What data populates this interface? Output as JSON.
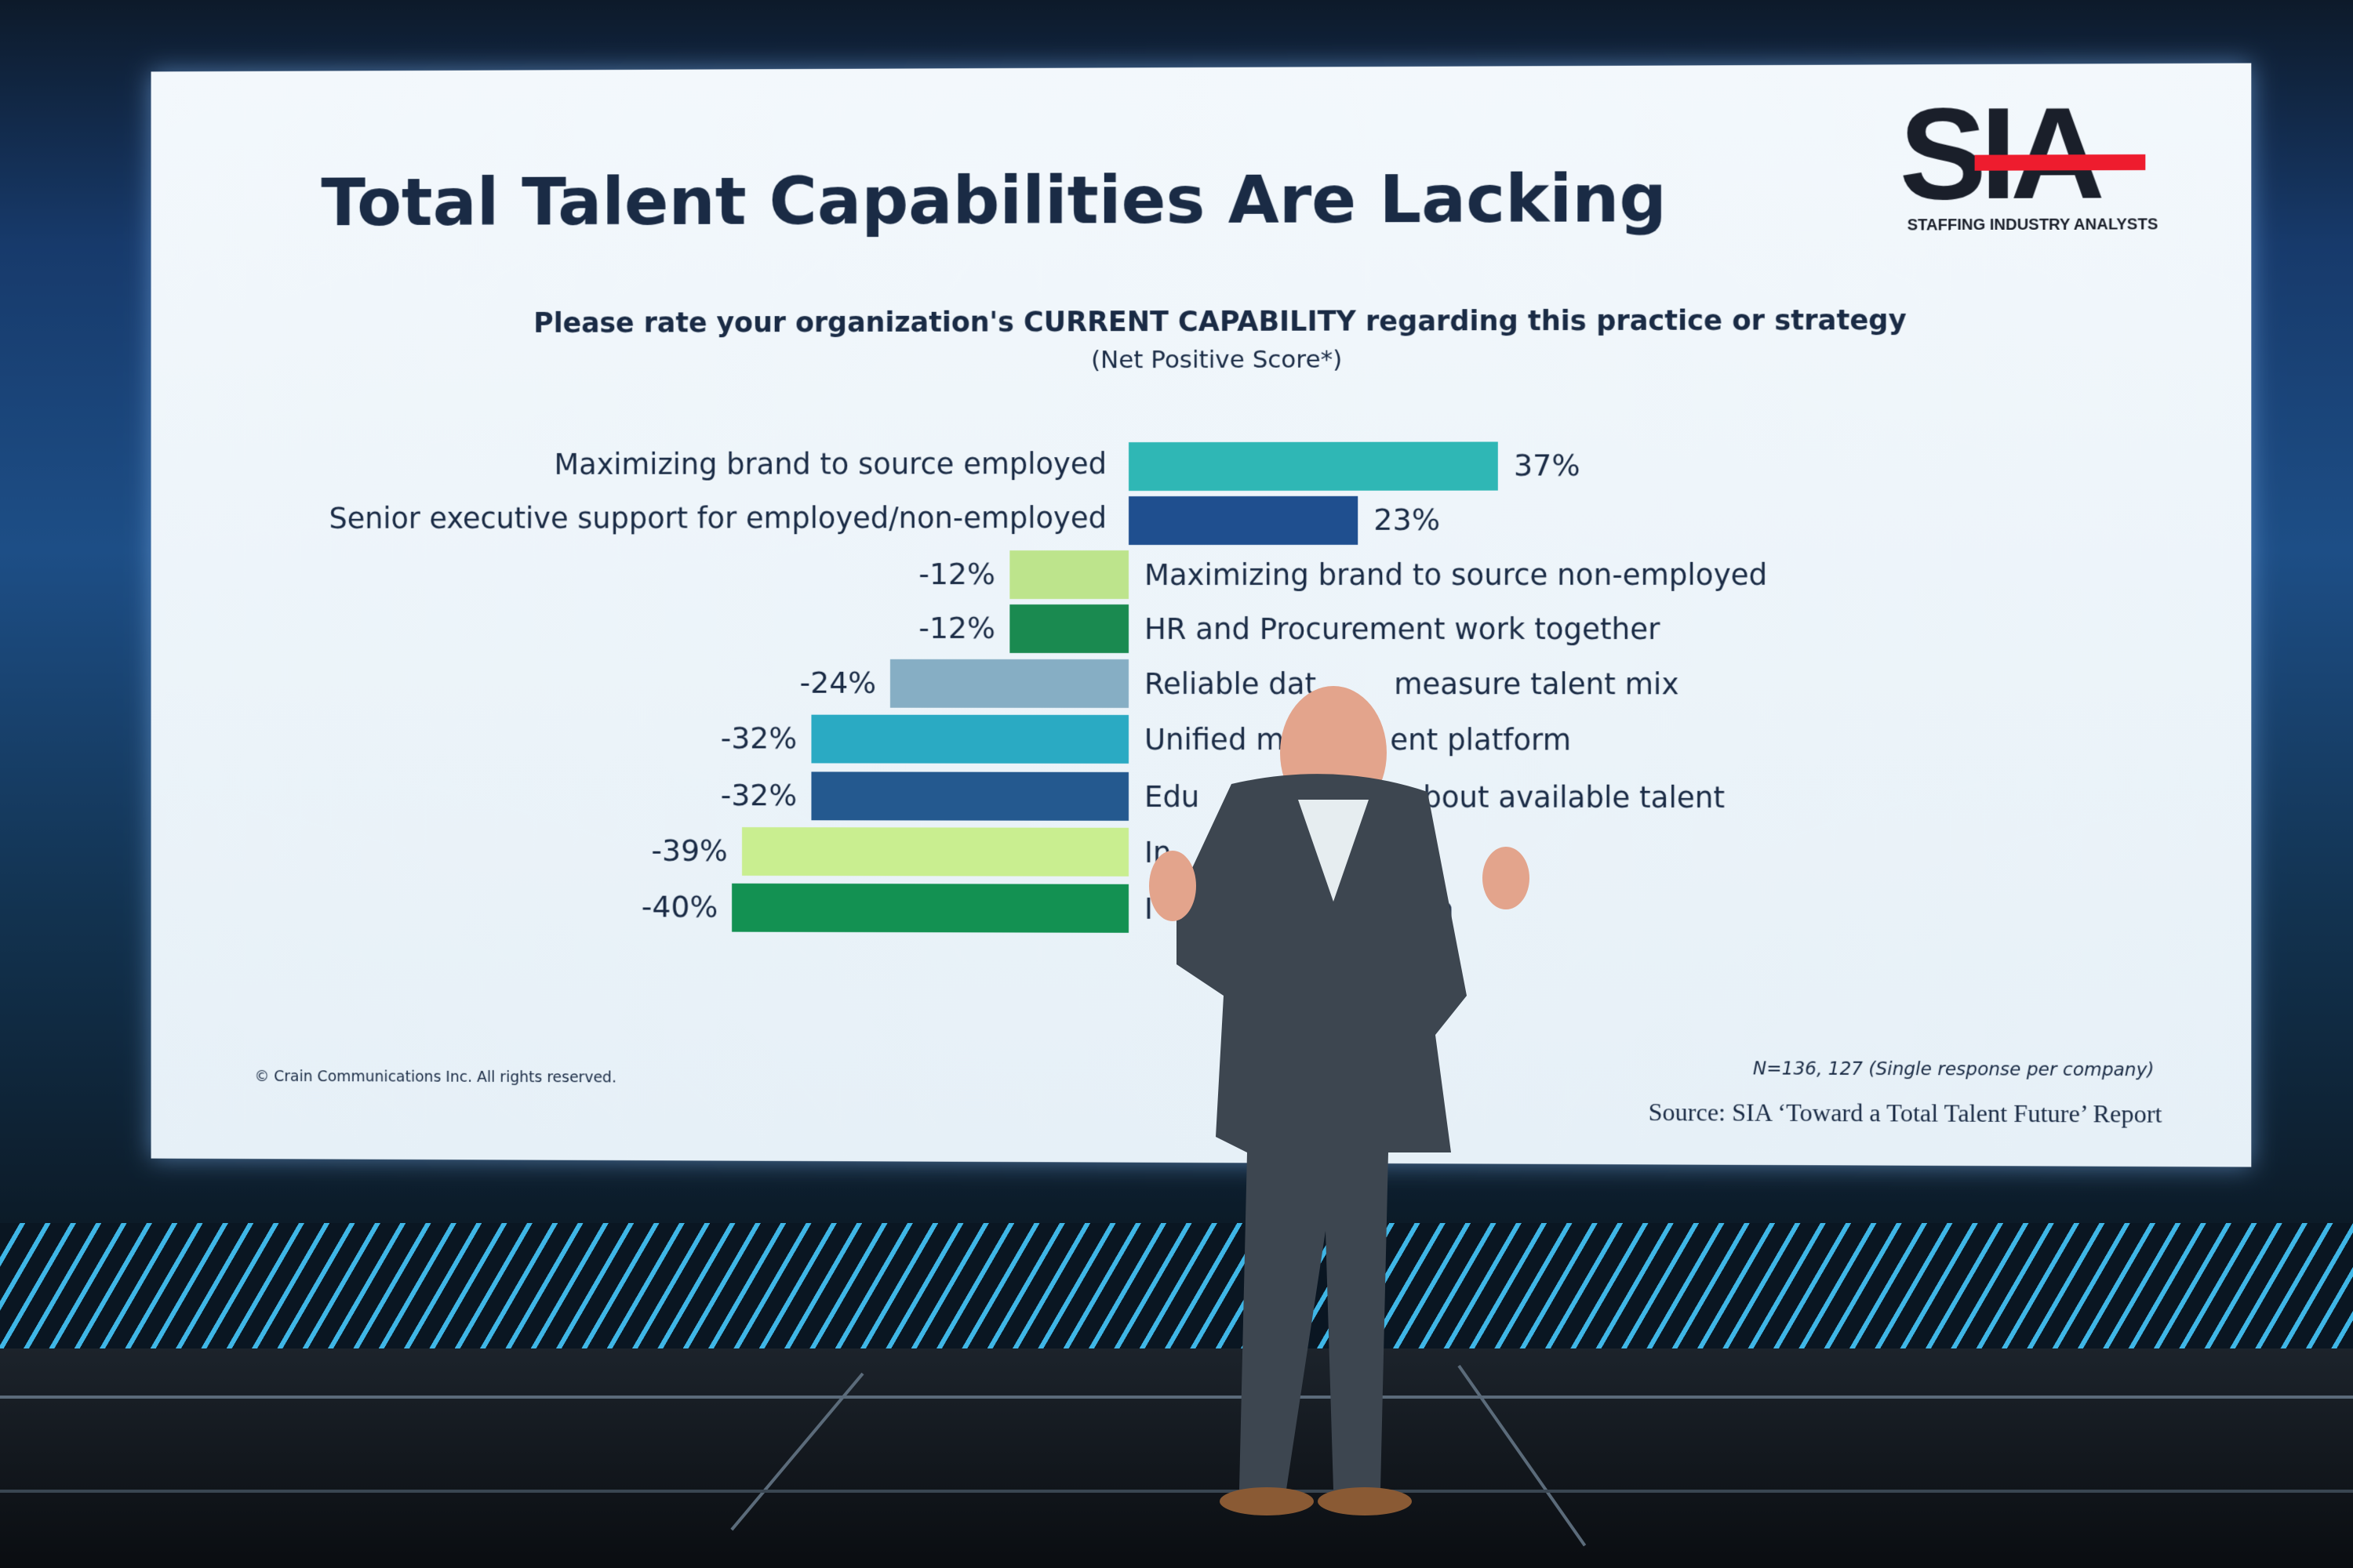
{
  "slide": {
    "title": "Total Talent Capabilities Are Lacking",
    "logo": {
      "letters": "SIA",
      "tagline": "STAFFING INDUSTRY ANALYSTS",
      "accent": "#ee1c2e"
    },
    "copyright": "© Crain Communications Inc. All rights reserved.",
    "sample_note": "N=136, 127 (Single response per company)",
    "source": "Source: SIA ‘Toward a Total Talent Future’ Report"
  },
  "chart_data": {
    "type": "bar",
    "orientation": "horizontal",
    "title": "Please rate your organization's CURRENT CAPABILITY regarding this practice or strategy",
    "subtitle": "(Net Positive Score*)",
    "categories": [
      {
        "label": "Maximizing brand to source employed",
        "visible_parts": [
          "Maximizing brand to source employed"
        ]
      },
      {
        "label": "Senior executive support for employed/non-employed",
        "visible_parts": [
          "Senior executive support for employed/non-employed"
        ]
      },
      {
        "label": "Maximizing brand to source non-employed",
        "visible_parts": [
          "Maximizing brand to source non-employed"
        ]
      },
      {
        "label": "HR and Procurement work together",
        "visible_parts": [
          "HR and Procurement work together"
        ]
      },
      {
        "label": "Reliable dat… measure talent mix",
        "visible_parts": [
          "Reliable dat",
          "measure talent mix"
        ]
      },
      {
        "label": "Unified ma… ent platform",
        "visible_parts": [
          "Unified ma",
          "ent platform"
        ]
      },
      {
        "label": "Edu… ers about available talent",
        "visible_parts": [
          "Edu",
          "ers about available talent"
        ]
      },
      {
        "label": "In… n tools",
        "visible_parts": [
          "In",
          "n tools"
        ]
      },
      {
        "label": "I… tion",
        "visible_parts": [
          "I",
          "tion"
        ]
      }
    ],
    "values": [
      37,
      23,
      -12,
      -12,
      -24,
      -32,
      -32,
      -39,
      -40
    ],
    "value_labels": [
      "37%",
      "23%",
      "-12%",
      "-12%",
      "-24%",
      "-32%",
      "-32%",
      "-39%",
      "-40%"
    ],
    "colors": [
      "#2fb7b5",
      "#1f4f8f",
      "#bde48c",
      "#1a8a50",
      "#86aec4",
      "#2aaac3",
      "#24598f",
      "#c9ee90",
      "#139152"
    ],
    "xlim": [
      -45,
      45
    ],
    "grid": false
  }
}
